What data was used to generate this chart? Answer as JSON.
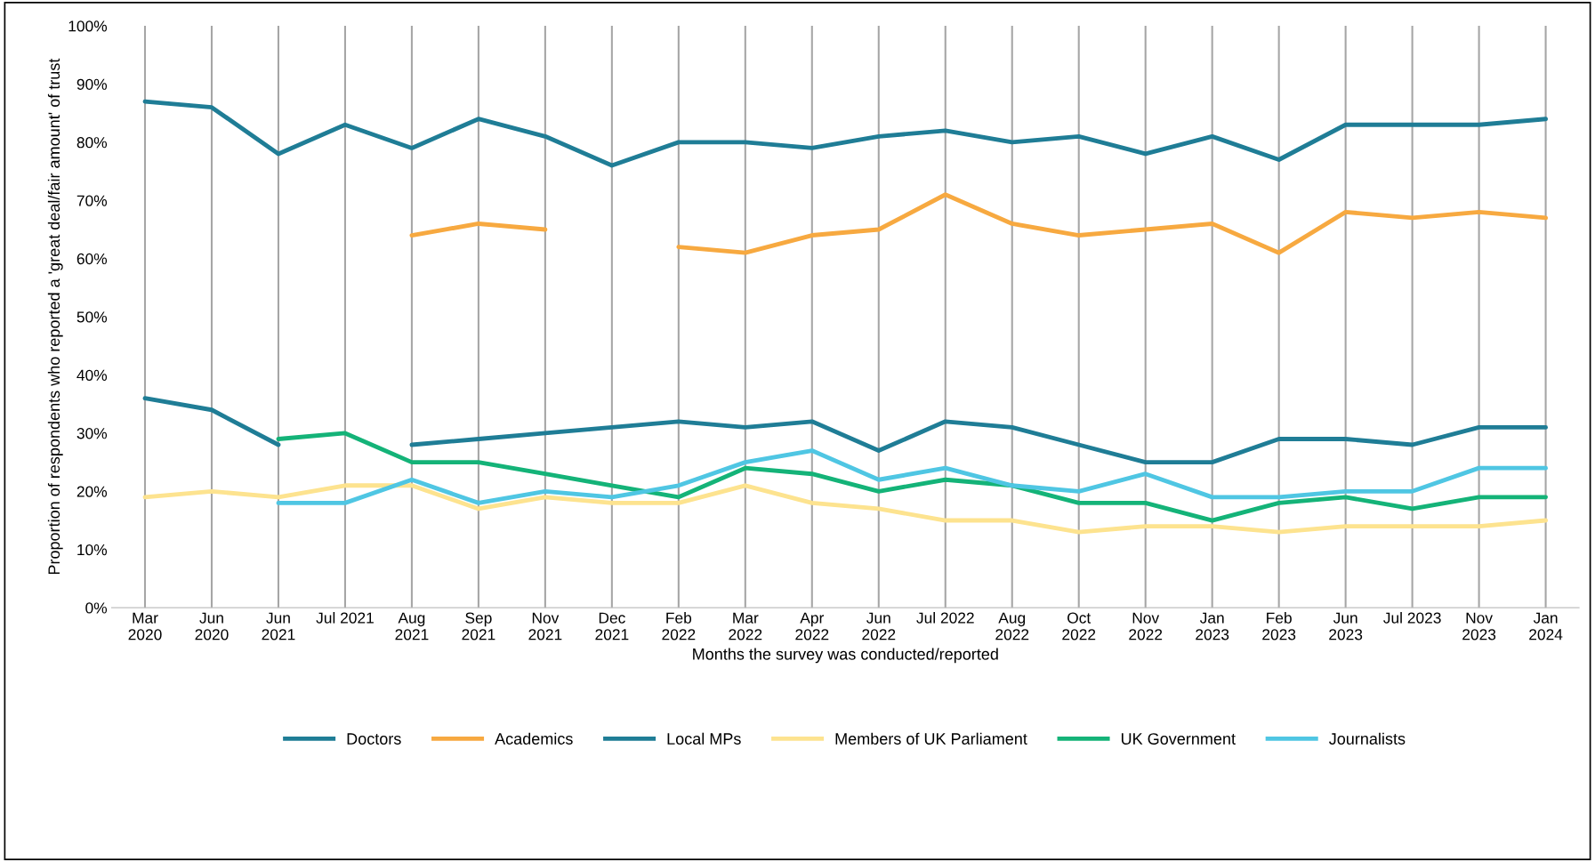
{
  "chart_data": {
    "type": "line",
    "xlabel": "Months the survey was conducted/reported",
    "ylabel": "Proportion of respondents who reported a 'great deal/fair amount' of trust",
    "categories": [
      "Mar\n2020",
      "Jun\n2020",
      "Jun\n2021",
      "Jul 2021",
      "Aug\n2021",
      "Sep\n2021",
      "Nov\n2021",
      "Dec\n2021",
      "Feb\n2022",
      "Mar\n2022",
      "Apr\n2022",
      "Jun\n2022",
      "Jul 2022",
      "Aug\n2022",
      "Oct\n2022",
      "Nov\n2022",
      "Jan\n2023",
      "Feb\n2023",
      "Jun\n2023",
      "Jul 2023",
      "Nov\n2023",
      "Jan\n2024"
    ],
    "series": [
      {
        "name": "Doctors",
        "color": "#1f7d96",
        "values": [
          87,
          86,
          78,
          83,
          79,
          84,
          81,
          76,
          80,
          80,
          79,
          81,
          82,
          80,
          81,
          78,
          81,
          77,
          83,
          83,
          83,
          84
        ]
      },
      {
        "name": "Academics",
        "color": "#f7a940",
        "values": [
          null,
          null,
          null,
          null,
          64,
          66,
          65,
          null,
          62,
          61,
          64,
          65,
          71,
          66,
          64,
          65,
          66,
          61,
          68,
          67,
          68,
          67
        ]
      },
      {
        "name": "Local MPs",
        "color": "#1f7d96",
        "values": [
          36,
          34,
          28,
          null,
          28,
          29,
          30,
          31,
          32,
          31,
          32,
          27,
          32,
          31,
          28,
          25,
          25,
          29,
          29,
          28,
          31,
          31
        ]
      },
      {
        "name": "Members of UK Parliament",
        "color": "#fde38f",
        "values": [
          19,
          20,
          19,
          21,
          21,
          17,
          19,
          18,
          18,
          21,
          18,
          17,
          15,
          15,
          13,
          14,
          14,
          13,
          14,
          14,
          14,
          15
        ]
      },
      {
        "name": "UK Government",
        "color": "#14b378",
        "values": [
          null,
          null,
          29,
          30,
          25,
          25,
          23,
          21,
          19,
          24,
          23,
          20,
          22,
          21,
          18,
          18,
          15,
          18,
          19,
          17,
          19,
          19
        ]
      },
      {
        "name": "Journalists",
        "color": "#4fc6e3",
        "values": [
          null,
          null,
          18,
          18,
          22,
          18,
          20,
          19,
          21,
          25,
          27,
          22,
          24,
          21,
          20,
          23,
          19,
          19,
          20,
          20,
          24,
          24
        ]
      }
    ],
    "ylim": [
      0,
      100
    ],
    "yticks": [
      {
        "value": 0,
        "label": "0%"
      },
      {
        "value": 10,
        "label": "10%"
      },
      {
        "value": 20,
        "label": "20%"
      },
      {
        "value": 30,
        "label": "30%"
      },
      {
        "value": 40,
        "label": "40%"
      },
      {
        "value": 50,
        "label": "50%"
      },
      {
        "value": 60,
        "label": "60%"
      },
      {
        "value": 70,
        "label": "70%"
      },
      {
        "value": 80,
        "label": "80%"
      },
      {
        "value": 90,
        "label": "90%"
      },
      {
        "value": 100,
        "label": "100%"
      }
    ],
    "grid": "x",
    "legend": "bottom",
    "marker": "none",
    "line_style": "solid"
  }
}
